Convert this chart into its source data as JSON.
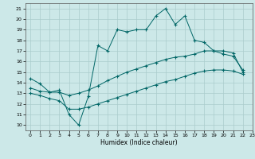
{
  "title": "",
  "xlabel": "Humidex (Indice chaleur)",
  "bg_color": "#cce8e8",
  "grid_color": "#aacccc",
  "line_color": "#006666",
  "xlim": [
    -0.5,
    23
  ],
  "ylim": [
    9.5,
    21.5
  ],
  "xticks": [
    0,
    1,
    2,
    3,
    4,
    5,
    6,
    7,
    8,
    9,
    10,
    11,
    12,
    13,
    14,
    15,
    16,
    17,
    18,
    19,
    20,
    21,
    22,
    23
  ],
  "yticks": [
    10,
    11,
    12,
    13,
    14,
    15,
    16,
    17,
    18,
    19,
    20,
    21
  ],
  "line1_x": [
    0,
    1,
    2,
    3,
    4,
    5,
    6,
    7,
    8,
    9,
    10,
    11,
    12,
    13,
    14,
    15,
    16,
    17,
    18,
    19,
    20,
    21,
    22
  ],
  "line1_y": [
    14.4,
    13.9,
    13.1,
    13.3,
    11.0,
    10.0,
    12.7,
    17.5,
    17.0,
    19.0,
    18.8,
    19.0,
    19.0,
    20.3,
    21.0,
    19.5,
    20.3,
    18.0,
    17.8,
    17.0,
    16.7,
    16.5,
    15.2
  ],
  "line2_x": [
    0,
    1,
    2,
    3,
    4,
    5,
    6,
    7,
    8,
    9,
    10,
    11,
    12,
    13,
    14,
    15,
    16,
    17,
    18,
    19,
    20,
    21,
    22
  ],
  "line2_y": [
    13.5,
    13.2,
    13.1,
    13.1,
    12.8,
    13.0,
    13.3,
    13.7,
    14.2,
    14.6,
    15.0,
    15.3,
    15.6,
    15.9,
    16.2,
    16.4,
    16.5,
    16.7,
    17.0,
    17.0,
    17.0,
    16.8,
    15.0
  ],
  "line3_x": [
    0,
    1,
    2,
    3,
    4,
    5,
    6,
    7,
    8,
    9,
    10,
    11,
    12,
    13,
    14,
    15,
    16,
    17,
    18,
    19,
    20,
    21,
    22
  ],
  "line3_y": [
    13.0,
    12.8,
    12.5,
    12.3,
    11.5,
    11.5,
    11.7,
    12.0,
    12.3,
    12.6,
    12.9,
    13.2,
    13.5,
    13.8,
    14.1,
    14.3,
    14.6,
    14.9,
    15.1,
    15.2,
    15.2,
    15.1,
    14.8
  ]
}
